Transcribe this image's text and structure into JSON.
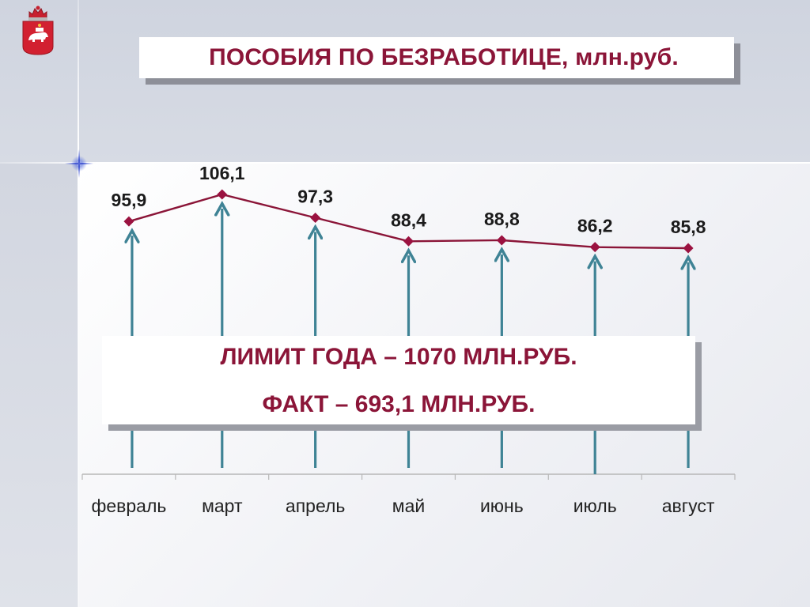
{
  "title": "ПОСОБИЯ ПО БЕЗРАБОТИЦЕ, млн.руб.",
  "info_box": {
    "line1": "ЛИМИТ ГОДА – 1070 МЛН.РУБ.",
    "line2": "ФАКТ – 693,1 МЛН.РУБ."
  },
  "emblem_icon": "perm-krai-coat-of-arms",
  "colors": {
    "title_text": "#8b1538",
    "series_line": "#8b1538",
    "marker": "#9b1240",
    "arrow": "#3f8395",
    "axis": "#b7b7b7",
    "value_label": "#1b1b1b",
    "category_label": "#222222"
  },
  "chart_data": {
    "type": "line",
    "categories": [
      "февраль",
      "март",
      "апрель",
      "май",
      "июнь",
      "июль",
      "август"
    ],
    "values": [
      95.9,
      106.1,
      97.3,
      88.4,
      88.8,
      86.2,
      85.8
    ],
    "value_labels": [
      "95,9",
      "106,1",
      "97,3",
      "88,4",
      "88,8",
      "86,2",
      "85,8"
    ],
    "title": "ПОСОБИЯ ПО БЕЗРАБОТИЦЕ, млн.руб.",
    "xlabel": "",
    "ylabel": "",
    "legend": "none",
    "grid": false,
    "marker": "diamond",
    "decoration": "upward arrows below each point"
  }
}
